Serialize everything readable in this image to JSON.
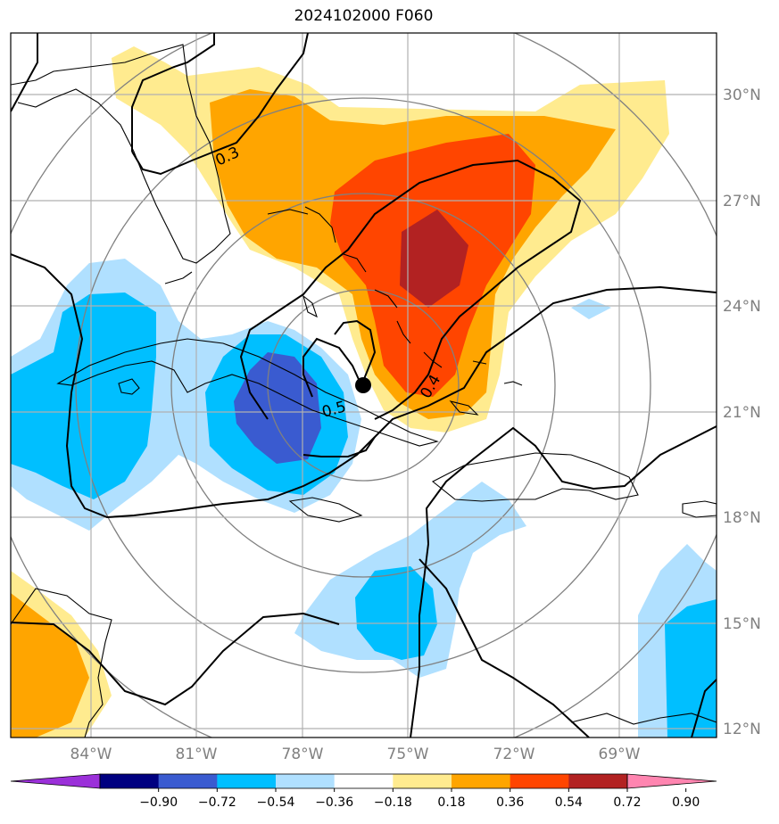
{
  "title": "2024102000 F060",
  "lat_labels": [
    "30°N",
    "27°N",
    "24°N",
    "21°N",
    "18°N",
    "15°N",
    "12°N"
  ],
  "lon_labels": [
    "84°W",
    "81°W",
    "78°W",
    "75°W",
    "72°W",
    "69°W"
  ],
  "contour_labels": [
    "0.3",
    "0.5",
    "0.4"
  ],
  "colorbar": {
    "ticks": [
      "−0.90",
      "−0.72",
      "−0.54",
      "−0.36",
      "−0.18",
      "0.18",
      "0.36",
      "0.54",
      "0.72",
      "0.90"
    ],
    "colors": [
      "#9b30d9",
      "#000080",
      "#3a5bd0",
      "#00bfff",
      "#b0e0ff",
      "#ffffff",
      "#ffeb8f",
      "#ffa500",
      "#ff4500",
      "#b22222",
      "#ff85b0"
    ]
  },
  "storm_center": {
    "lat": 21.7,
    "lon": -76.3
  }
}
